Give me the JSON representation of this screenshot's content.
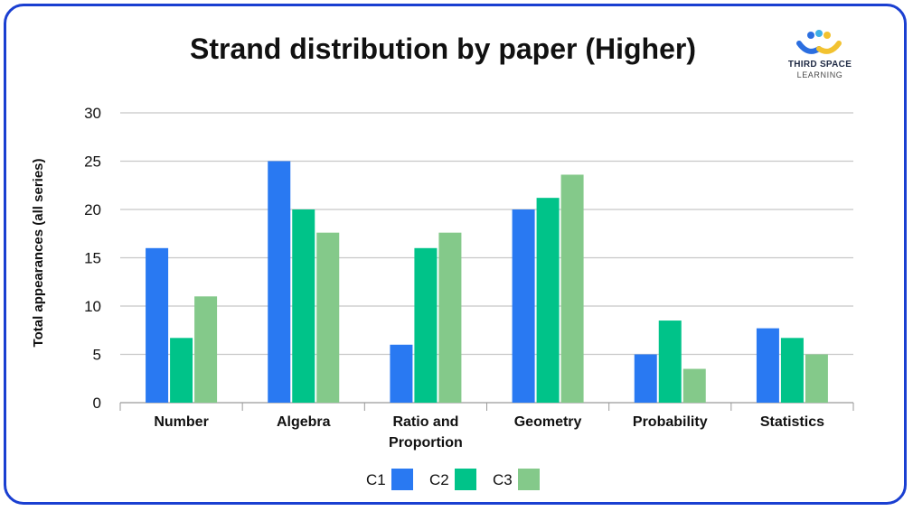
{
  "logo": {
    "name": "THIRD SPACE",
    "sub": "LEARNING"
  },
  "chart_data": {
    "type": "bar",
    "title": "Strand distribution by paper (Higher)",
    "xlabel": "",
    "ylabel": "Total appearances (all series)",
    "ylim": [
      0,
      30
    ],
    "yticks": [
      0,
      5,
      10,
      15,
      20,
      25,
      30
    ],
    "grid": true,
    "legend_position": "bottom",
    "categories": [
      "Number",
      "Algebra",
      "Ratio and Proportion",
      "Geometry",
      "Probability",
      "Statistics"
    ],
    "category_lines": [
      [
        "Number"
      ],
      [
        "Algebra"
      ],
      [
        "Ratio and",
        "Proportion"
      ],
      [
        "Geometry"
      ],
      [
        "Probability"
      ],
      [
        "Statistics"
      ]
    ],
    "series": [
      {
        "name": "C1",
        "color": "#2979f2",
        "values": [
          16,
          25,
          6,
          20,
          5,
          7.7
        ]
      },
      {
        "name": "C2",
        "color": "#00c389",
        "values": [
          6.7,
          20,
          16,
          21.2,
          8.5,
          6.7
        ]
      },
      {
        "name": "C3",
        "color": "#84c98a",
        "values": [
          11,
          17.6,
          17.6,
          23.6,
          3.5,
          5
        ]
      }
    ]
  }
}
